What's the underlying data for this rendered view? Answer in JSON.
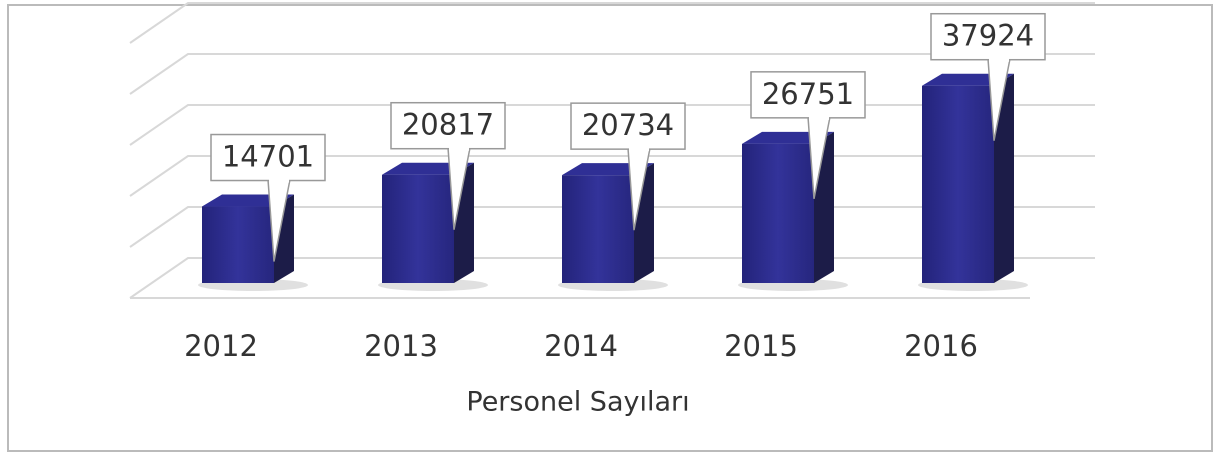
{
  "chart_data": {
    "type": "bar3d",
    "x_label": "Personel Sayıları",
    "categories": [
      "2012",
      "2013",
      "2014",
      "2015",
      "2016"
    ],
    "values": [
      14701,
      20817,
      20734,
      26751,
      37924
    ],
    "color": "#2a2a8a",
    "ylim": [
      0,
      50000
    ],
    "yticks": [
      0,
      10000,
      20000,
      30000,
      40000,
      50000
    ],
    "grid": true
  }
}
